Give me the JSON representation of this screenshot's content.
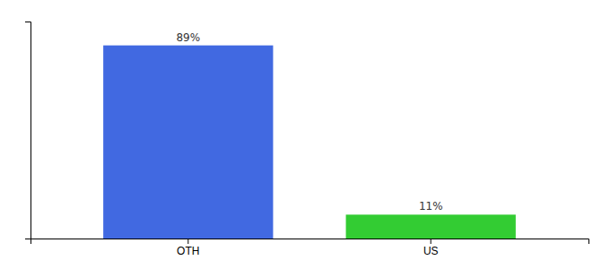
{
  "chart_data": {
    "type": "bar",
    "categories": [
      "OTH",
      "US"
    ],
    "values": [
      89,
      11
    ],
    "value_labels": [
      "89%",
      "11%"
    ],
    "colors": [
      "#4169e1",
      "#33cc33"
    ],
    "ylim": [
      0,
      100
    ],
    "data_labels": true,
    "tick_labels": "x"
  }
}
